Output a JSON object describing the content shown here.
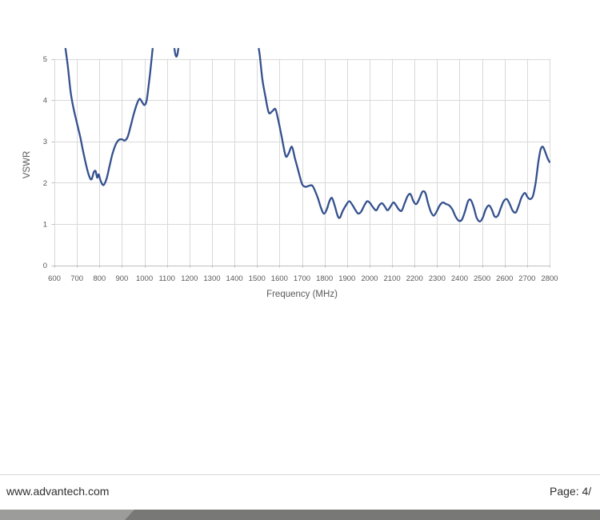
{
  "chart_data": {
    "type": "line",
    "title": "",
    "xlabel": "Frequency (MHz)",
    "ylabel": "VSWR",
    "xlim": [
      600,
      2800
    ],
    "ylim": [
      0,
      5
    ],
    "clip_above": 5.26,
    "grid": true,
    "legend": "none",
    "x_ticks": [
      600,
      700,
      800,
      900,
      1000,
      1100,
      1200,
      1300,
      1400,
      1500,
      1600,
      1700,
      1800,
      1900,
      2000,
      2100,
      2200,
      2300,
      2400,
      2500,
      2600,
      2700,
      2800
    ],
    "y_ticks": [
      0,
      1,
      2,
      3,
      4,
      5
    ],
    "line_color": "#34508e",
    "grid_color": "#d9d9d9",
    "axis_color": "#bfbfbf",
    "tick_label_color": "#595959",
    "axis_title_color": "#595959",
    "series": [
      {
        "name": "VSWR",
        "points": [
          [
            600,
            7.0
          ],
          [
            630,
            6.0
          ],
          [
            648,
            5.3
          ],
          [
            660,
            4.8
          ],
          [
            672,
            4.2
          ],
          [
            685,
            3.8
          ],
          [
            700,
            3.45
          ],
          [
            715,
            3.1
          ],
          [
            728,
            2.75
          ],
          [
            742,
            2.4
          ],
          [
            755,
            2.15
          ],
          [
            765,
            2.08
          ],
          [
            775,
            2.25
          ],
          [
            783,
            2.28
          ],
          [
            790,
            2.12
          ],
          [
            797,
            2.2
          ],
          [
            805,
            2.05
          ],
          [
            818,
            1.94
          ],
          [
            832,
            2.1
          ],
          [
            845,
            2.4
          ],
          [
            858,
            2.7
          ],
          [
            872,
            2.92
          ],
          [
            885,
            3.03
          ],
          [
            900,
            3.05
          ],
          [
            912,
            3.02
          ],
          [
            925,
            3.1
          ],
          [
            938,
            3.35
          ],
          [
            952,
            3.65
          ],
          [
            966,
            3.9
          ],
          [
            978,
            4.03
          ],
          [
            990,
            3.95
          ],
          [
            1000,
            3.88
          ],
          [
            1010,
            4.0
          ],
          [
            1022,
            4.5
          ],
          [
            1032,
            5.0
          ],
          [
            1040,
            5.4
          ],
          [
            1060,
            6.0
          ],
          [
            1120,
            6.0
          ],
          [
            1132,
            5.3
          ],
          [
            1142,
            5.05
          ],
          [
            1152,
            5.3
          ],
          [
            1165,
            6.0
          ],
          [
            1480,
            6.0
          ],
          [
            1500,
            5.5
          ],
          [
            1512,
            5.1
          ],
          [
            1524,
            4.5
          ],
          [
            1537,
            4.1
          ],
          [
            1552,
            3.7
          ],
          [
            1568,
            3.73
          ],
          [
            1582,
            3.78
          ],
          [
            1595,
            3.5
          ],
          [
            1610,
            3.1
          ],
          [
            1627,
            2.65
          ],
          [
            1640,
            2.7
          ],
          [
            1655,
            2.87
          ],
          [
            1668,
            2.6
          ],
          [
            1683,
            2.3
          ],
          [
            1700,
            1.97
          ],
          [
            1715,
            1.9
          ],
          [
            1730,
            1.92
          ],
          [
            1745,
            1.93
          ],
          [
            1758,
            1.8
          ],
          [
            1772,
            1.6
          ],
          [
            1785,
            1.38
          ],
          [
            1797,
            1.25
          ],
          [
            1810,
            1.35
          ],
          [
            1822,
            1.55
          ],
          [
            1833,
            1.63
          ],
          [
            1845,
            1.45
          ],
          [
            1858,
            1.2
          ],
          [
            1868,
            1.15
          ],
          [
            1880,
            1.3
          ],
          [
            1895,
            1.45
          ],
          [
            1910,
            1.55
          ],
          [
            1925,
            1.45
          ],
          [
            1938,
            1.33
          ],
          [
            1950,
            1.25
          ],
          [
            1963,
            1.3
          ],
          [
            1977,
            1.45
          ],
          [
            1990,
            1.55
          ],
          [
            2003,
            1.5
          ],
          [
            2016,
            1.4
          ],
          [
            2030,
            1.33
          ],
          [
            2043,
            1.45
          ],
          [
            2056,
            1.5
          ],
          [
            2068,
            1.42
          ],
          [
            2080,
            1.33
          ],
          [
            2093,
            1.42
          ],
          [
            2106,
            1.52
          ],
          [
            2118,
            1.45
          ],
          [
            2130,
            1.35
          ],
          [
            2143,
            1.32
          ],
          [
            2156,
            1.5
          ],
          [
            2170,
            1.68
          ],
          [
            2182,
            1.72
          ],
          [
            2195,
            1.55
          ],
          [
            2208,
            1.48
          ],
          [
            2222,
            1.62
          ],
          [
            2235,
            1.78
          ],
          [
            2248,
            1.75
          ],
          [
            2260,
            1.5
          ],
          [
            2272,
            1.3
          ],
          [
            2285,
            1.2
          ],
          [
            2298,
            1.3
          ],
          [
            2312,
            1.45
          ],
          [
            2326,
            1.52
          ],
          [
            2340,
            1.48
          ],
          [
            2354,
            1.45
          ],
          [
            2368,
            1.35
          ],
          [
            2382,
            1.18
          ],
          [
            2396,
            1.08
          ],
          [
            2410,
            1.1
          ],
          [
            2424,
            1.3
          ],
          [
            2438,
            1.55
          ],
          [
            2450,
            1.58
          ],
          [
            2463,
            1.4
          ],
          [
            2476,
            1.15
          ],
          [
            2490,
            1.06
          ],
          [
            2503,
            1.15
          ],
          [
            2516,
            1.35
          ],
          [
            2530,
            1.45
          ],
          [
            2543,
            1.35
          ],
          [
            2556,
            1.18
          ],
          [
            2570,
            1.2
          ],
          [
            2583,
            1.38
          ],
          [
            2596,
            1.55
          ],
          [
            2610,
            1.6
          ],
          [
            2623,
            1.48
          ],
          [
            2636,
            1.32
          ],
          [
            2650,
            1.28
          ],
          [
            2663,
            1.45
          ],
          [
            2676,
            1.65
          ],
          [
            2690,
            1.75
          ],
          [
            2702,
            1.65
          ],
          [
            2714,
            1.6
          ],
          [
            2726,
            1.68
          ],
          [
            2738,
            2.0
          ],
          [
            2750,
            2.5
          ],
          [
            2760,
            2.8
          ],
          [
            2770,
            2.87
          ],
          [
            2780,
            2.75
          ],
          [
            2792,
            2.58
          ],
          [
            2800,
            2.5
          ]
        ]
      }
    ]
  },
  "footer": {
    "website": "www.advantech.com",
    "page_label": "Page: 4/",
    "rule_color": "#d6d6d6",
    "text_color": "#2e2e2e",
    "band_light_color": "#9c9c9a",
    "band_dark_color": "#787876"
  }
}
